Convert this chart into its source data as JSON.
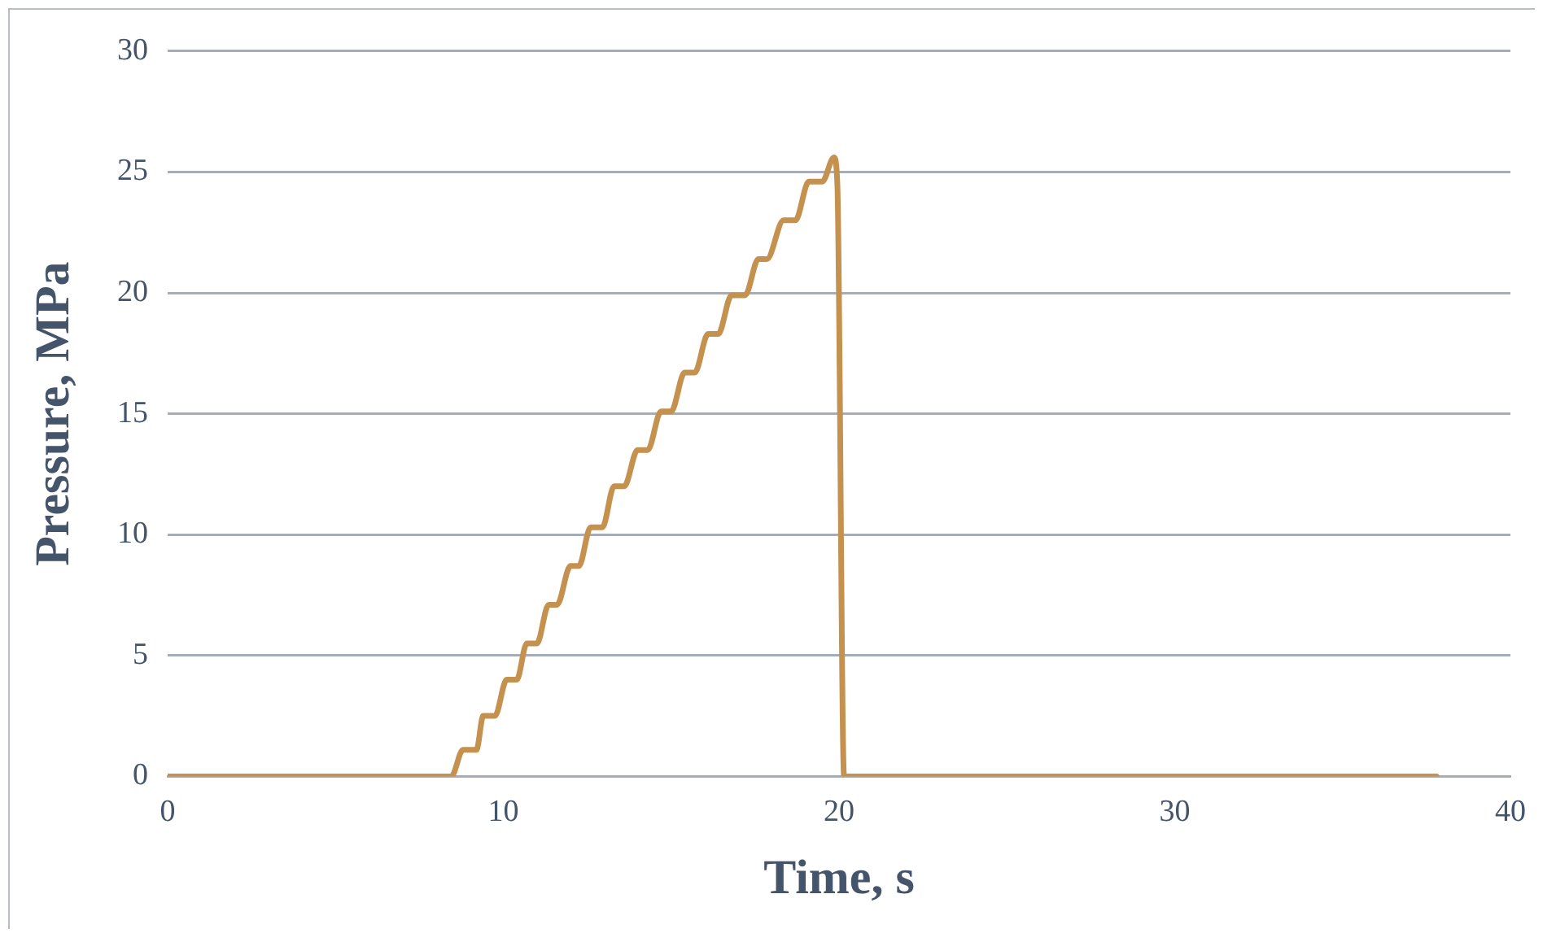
{
  "chart_data": {
    "type": "line",
    "xlabel": "Time, s",
    "ylabel": "Pressure, MPa",
    "series": [
      {
        "color": "#c4914f",
        "x": [
          0,
          8.45,
          8.8,
          9.2,
          9.4,
          9.75,
          10.1,
          10.4,
          10.7,
          11.0,
          11.35,
          11.6,
          12.0,
          12.25,
          12.6,
          12.95,
          13.3,
          13.6,
          14.0,
          14.3,
          14.7,
          15.0,
          15.4,
          15.7,
          16.1,
          16.4,
          16.8,
          17.2,
          17.6,
          17.85,
          18.35,
          18.7,
          19.1,
          19.5,
          19.85,
          19.95,
          20.15,
          37.8
        ],
        "values": [
          0,
          0,
          1.1,
          1.1,
          2.5,
          2.5,
          4.0,
          4.0,
          5.5,
          5.5,
          7.1,
          7.1,
          8.7,
          8.7,
          10.3,
          10.3,
          12.0,
          12.0,
          13.5,
          13.5,
          15.1,
          15.1,
          16.7,
          16.7,
          18.3,
          18.3,
          19.9,
          19.9,
          21.4,
          21.4,
          23.0,
          23.0,
          24.6,
          24.6,
          25.6,
          24.5,
          0,
          0
        ]
      }
    ],
    "xlim": [
      0,
      40
    ],
    "xticks": [
      0,
      10,
      20,
      30,
      40
    ],
    "ylim": [
      0,
      30
    ],
    "yticks": [
      0,
      5,
      10,
      15,
      20,
      25,
      30
    ],
    "grid": "y",
    "legend": false,
    "marker": "none",
    "line_style": "solid"
  }
}
